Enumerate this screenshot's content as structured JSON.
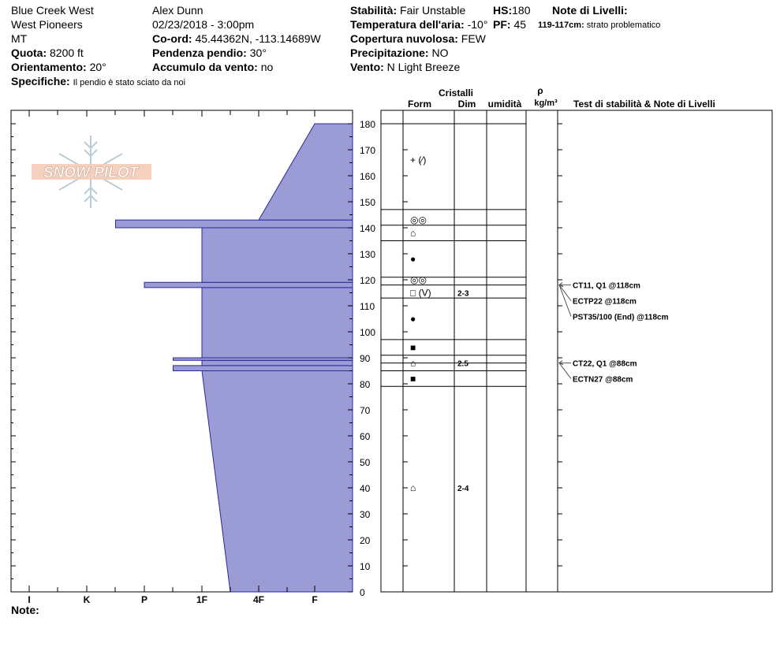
{
  "header": {
    "location": "Blue Creek West",
    "range": "West Pioneers",
    "state": "MT",
    "observer": "Alex Dunn",
    "datetime": "02/23/2018 - 3:00pm",
    "coord_label": "Co-ord:",
    "coord_value": "45.44362N, -113.14689W",
    "quota_label": "Quota:",
    "quota_value": "8200 ft",
    "orient_label": "Orientamento:",
    "orient_value": "20°",
    "slope_label": "Pendenza pendio:",
    "slope_value": "30°",
    "wind_load_label": "Accumulo da vento:",
    "wind_load_value": "no",
    "spec_label": "Specifiche:",
    "spec_value": "Il pendio è stato sciato da noi",
    "stab_label": "Stabilità:",
    "stab_value": "Fair Unstable",
    "hs_label": "HS:",
    "hs_value": "180",
    "air_label": "Temperatura dell'aria:",
    "air_value": "-10°",
    "pf_label": "PF:",
    "pf_value": "45",
    "cloud_label": "Copertura nuvolosa:",
    "cloud_value": "FEW",
    "precip_label": "Precipitazione:",
    "precip_value": "NO",
    "wind_label": "Vento:",
    "wind_value": "N Light Breeze",
    "layer_notes_label": "Note di Livelli:",
    "layer_note_range": "119-117cm:",
    "layer_note_text": "strato problematico",
    "note_label": "Note:"
  },
  "logo_text": "SNOW PILOT",
  "colors": {
    "hardness_fill": "#9b9bd6",
    "hardness_stroke": "#2a2a9a"
  },
  "columns": {
    "cristalli": "Cristalli",
    "form": "Form",
    "dim": "Dim",
    "umidita": "umidità",
    "rho": "ρ",
    "density_unit": "kg/m³",
    "tests": "Test di stabilità & Note di Livelli"
  },
  "chart_data": {
    "type": "area",
    "title": "",
    "xlabel": "",
    "ylabel": "",
    "ylim": [
      0,
      180
    ],
    "y_ticks": [
      0,
      10,
      20,
      30,
      40,
      50,
      60,
      70,
      80,
      90,
      100,
      110,
      120,
      130,
      140,
      150,
      160,
      170,
      180
    ],
    "x_categories": [
      "I",
      "K",
      "P",
      "1F",
      "4F",
      "F"
    ],
    "hardness_profile": [
      {
        "bottom": 0,
        "top": 85,
        "hardness_bottom": "1F-4F",
        "hardness_top": "1F"
      },
      {
        "bottom": 85,
        "top": 87,
        "hardness": "P-1F"
      },
      {
        "bottom": 87,
        "top": 89,
        "hardness": "1F"
      },
      {
        "bottom": 89,
        "top": 90,
        "hardness": "P-1F"
      },
      {
        "bottom": 90,
        "top": 117,
        "hardness": "1F"
      },
      {
        "bottom": 117,
        "top": 119,
        "hardness": "P"
      },
      {
        "bottom": 119,
        "top": 140,
        "hardness": "1F"
      },
      {
        "bottom": 140,
        "top": 143,
        "hardness": "K-P"
      },
      {
        "bottom": 143,
        "top": 180,
        "hardness_bottom": "4F",
        "hardness_top": "F"
      }
    ],
    "layer_boundaries": [
      180,
      147,
      141,
      135,
      121,
      118,
      113,
      97,
      91,
      88,
      85,
      79
    ],
    "layers": [
      {
        "y": 166,
        "form": "+ (⁄)",
        "dim": ""
      },
      {
        "y": 143,
        "form": "◎◎",
        "dim": ""
      },
      {
        "y": 138,
        "form": "⌂",
        "dim": ""
      },
      {
        "y": 128,
        "form": "●",
        "dim": ""
      },
      {
        "y": 120,
        "form": "◎◎",
        "dim": ""
      },
      {
        "y": 115,
        "form": "□ (V)",
        "dim": "2-3"
      },
      {
        "y": 105,
        "form": "●",
        "dim": ""
      },
      {
        "y": 94,
        "form": "■",
        "dim": ""
      },
      {
        "y": 88,
        "form": "⌂",
        "dim": "2.5"
      },
      {
        "y": 82,
        "form": "■",
        "dim": ""
      },
      {
        "y": 40,
        "form": "⌂",
        "dim": "2-4"
      }
    ],
    "tests": [
      {
        "y": 118,
        "text": "CT11, Q1 @118cm"
      },
      {
        "y": 118,
        "text": "ECTP22 @118cm"
      },
      {
        "y": 118,
        "text": "PST35/100 (End) @118cm"
      },
      {
        "y": 88,
        "text": "CT22, Q1 @88cm"
      },
      {
        "y": 88,
        "text": "ECTN27 @88cm"
      }
    ]
  }
}
